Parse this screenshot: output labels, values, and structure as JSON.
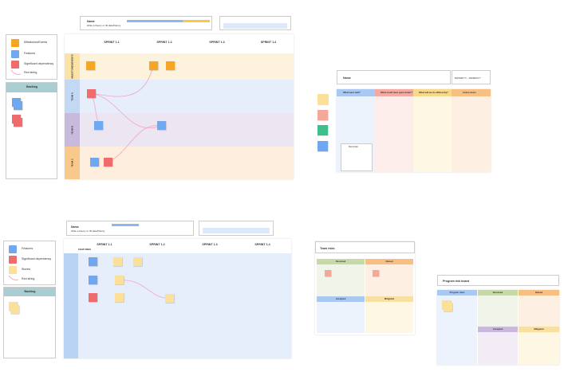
{
  "roadmap": {
    "legend": [
      "Milestones/Events",
      "Features",
      "Significant dependency",
      "Red string"
    ],
    "backlog": "Backlog",
    "card": {
      "title": "Name",
      "subtitle": "Write a theory or ID date/history"
    },
    "sprints": [
      "SPRINT 1.1",
      "SPRINT 1.2",
      "SPRINT 1.3",
      "SPRINT 1.4"
    ],
    "rows": [
      "MILESTONES/EVENTS",
      "TEAM A",
      "TEAM B",
      "TEAM C"
    ]
  },
  "retro": {
    "card": {
      "title": "Name",
      "dates": "DD/MM/YY - DD/MM/YY"
    },
    "columns": [
      "What went well?",
      "What could have gone better?",
      "What will we do differently?",
      "Action items"
    ],
    "note": "Reminder"
  },
  "story_map": {
    "legend": [
      "Features",
      "Significant dependency",
      "Stories",
      "Red string"
    ],
    "backlog": "Backlog",
    "card": {
      "title": "Name",
      "subtitle": "Write a theory or ID date/history"
    },
    "sprints": [
      "SPRINT 1.1",
      "SPRINT 1.2",
      "SPRINT 1.3",
      "SPRINT 1.4"
    ],
    "column": "FEATURES"
  },
  "team_risks": {
    "title": "Team risks",
    "quadrants": [
      "Resolved",
      "Owned",
      "Accepted",
      "Mitigated"
    ]
  },
  "program_risks": {
    "title": "Program risk board",
    "columns": [
      "Program risks",
      "Resolved",
      "Owned",
      "Accepted",
      "Mitigated"
    ]
  }
}
